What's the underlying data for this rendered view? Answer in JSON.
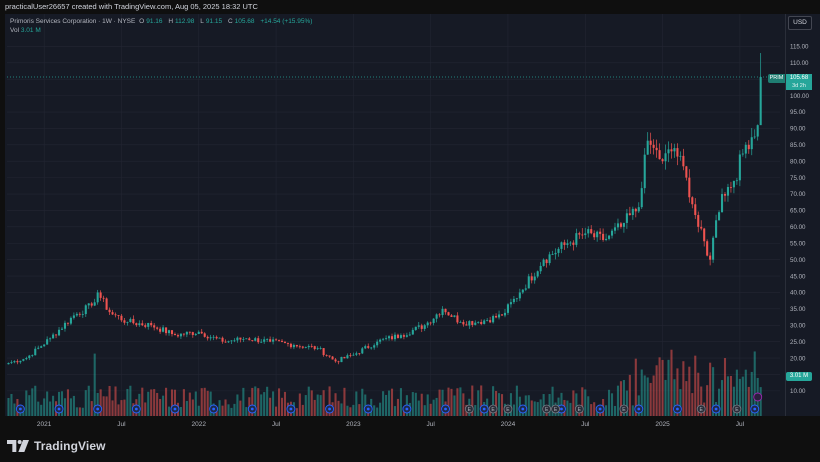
{
  "header": {
    "created_by": "practicalUser26657 created with TradingView.com, Aug 05, 2025 18:32 UTC"
  },
  "legend": {
    "symbol": "Primoris Services Corporation · 1W · NYSE",
    "o_label": "O",
    "o_value": "91.16",
    "h_label": "H",
    "h_value": "112.98",
    "l_label": "L",
    "l_value": "91.15",
    "c_label": "C",
    "c_value": "105.68",
    "change": "+14.54 (+15.95%)",
    "vol_label": "Vol",
    "vol_value": "3.01 M"
  },
  "price_scale": {
    "currency_button": "USD",
    "last_price_symbol": "PRIM",
    "last_price_value": "105.68",
    "countdown": "3d 2h",
    "volume_tag": "3.01 M"
  },
  "branding": {
    "logo_text": "TradingView"
  },
  "colors": {
    "up": "#26a69a",
    "down": "#ef5350",
    "background": "#161a25",
    "grid": "#232633",
    "accent": "#2962ff"
  },
  "chart_data": {
    "type": "candlestick",
    "symbol": "PRIM",
    "interval": "1W",
    "y_ticks": [
      10,
      15,
      20,
      25,
      30,
      35,
      40,
      45,
      50,
      55,
      60,
      65,
      70,
      75,
      80,
      85,
      90,
      95,
      100,
      105,
      110,
      115
    ],
    "y_tick_labels": [
      "10.00",
      "15.00",
      "20.00",
      "25.00",
      "30.00",
      "35.00",
      "40.00",
      "45.00",
      "50.00",
      "55.00",
      "60.00",
      "65.00",
      "70.00",
      "75.00",
      "80.00",
      "85.00",
      "90.00",
      "95.00",
      "100.00",
      "105.00",
      "110.00",
      "115.00"
    ],
    "ylim": [
      6,
      120
    ],
    "x_labels": [
      "2021",
      "Jul",
      "2022",
      "Jul",
      "2023",
      "Jul",
      "2024",
      "Jul",
      "2025",
      "Jul"
    ],
    "x_label_positions_weeks": [
      12,
      38,
      64,
      90,
      116,
      142,
      168,
      194,
      220,
      246
    ],
    "total_weeks": 260,
    "last_price": 105.68,
    "close_series_weekly_anchors": [
      {
        "week": 0,
        "close": 18.5
      },
      {
        "week": 6,
        "close": 20
      },
      {
        "week": 14,
        "close": 26
      },
      {
        "week": 22,
        "close": 33
      },
      {
        "week": 28,
        "close": 36
      },
      {
        "week": 30,
        "close": 40
      },
      {
        "week": 34,
        "close": 34
      },
      {
        "week": 40,
        "close": 31
      },
      {
        "week": 48,
        "close": 30
      },
      {
        "week": 56,
        "close": 27
      },
      {
        "week": 64,
        "close": 28
      },
      {
        "week": 72,
        "close": 25
      },
      {
        "week": 80,
        "close": 26
      },
      {
        "week": 88,
        "close": 25
      },
      {
        "week": 96,
        "close": 24
      },
      {
        "week": 104,
        "close": 23
      },
      {
        "week": 110,
        "close": 19
      },
      {
        "week": 116,
        "close": 21
      },
      {
        "week": 124,
        "close": 25
      },
      {
        "week": 132,
        "close": 27
      },
      {
        "week": 140,
        "close": 30
      },
      {
        "week": 146,
        "close": 35
      },
      {
        "week": 152,
        "close": 31
      },
      {
        "week": 158,
        "close": 31
      },
      {
        "week": 166,
        "close": 33
      },
      {
        "week": 172,
        "close": 40
      },
      {
        "week": 180,
        "close": 50
      },
      {
        "week": 188,
        "close": 55
      },
      {
        "week": 194,
        "close": 58
      },
      {
        "week": 200,
        "close": 56
      },
      {
        "week": 206,
        "close": 60
      },
      {
        "week": 212,
        "close": 66
      },
      {
        "week": 214,
        "close": 82
      },
      {
        "week": 216,
        "close": 85
      },
      {
        "week": 220,
        "close": 80
      },
      {
        "week": 224,
        "close": 84
      },
      {
        "week": 228,
        "close": 75
      },
      {
        "week": 232,
        "close": 60
      },
      {
        "week": 236,
        "close": 50
      },
      {
        "week": 238,
        "close": 62
      },
      {
        "week": 240,
        "close": 70
      },
      {
        "week": 244,
        "close": 74
      },
      {
        "week": 248,
        "close": 85
      },
      {
        "week": 252,
        "close": 91
      },
      {
        "week": 253,
        "close": 105.68
      }
    ],
    "event_markers": {
      "dividend_weeks": [
        4,
        17,
        30,
        43,
        56,
        69,
        82,
        95,
        108,
        121,
        134,
        147,
        160,
        173,
        186,
        199,
        212,
        225,
        238,
        251
      ],
      "earnings_weeks": [
        155,
        163,
        168,
        181,
        184,
        192,
        207,
        233,
        245
      ]
    },
    "volume_max_millions": 10
  }
}
